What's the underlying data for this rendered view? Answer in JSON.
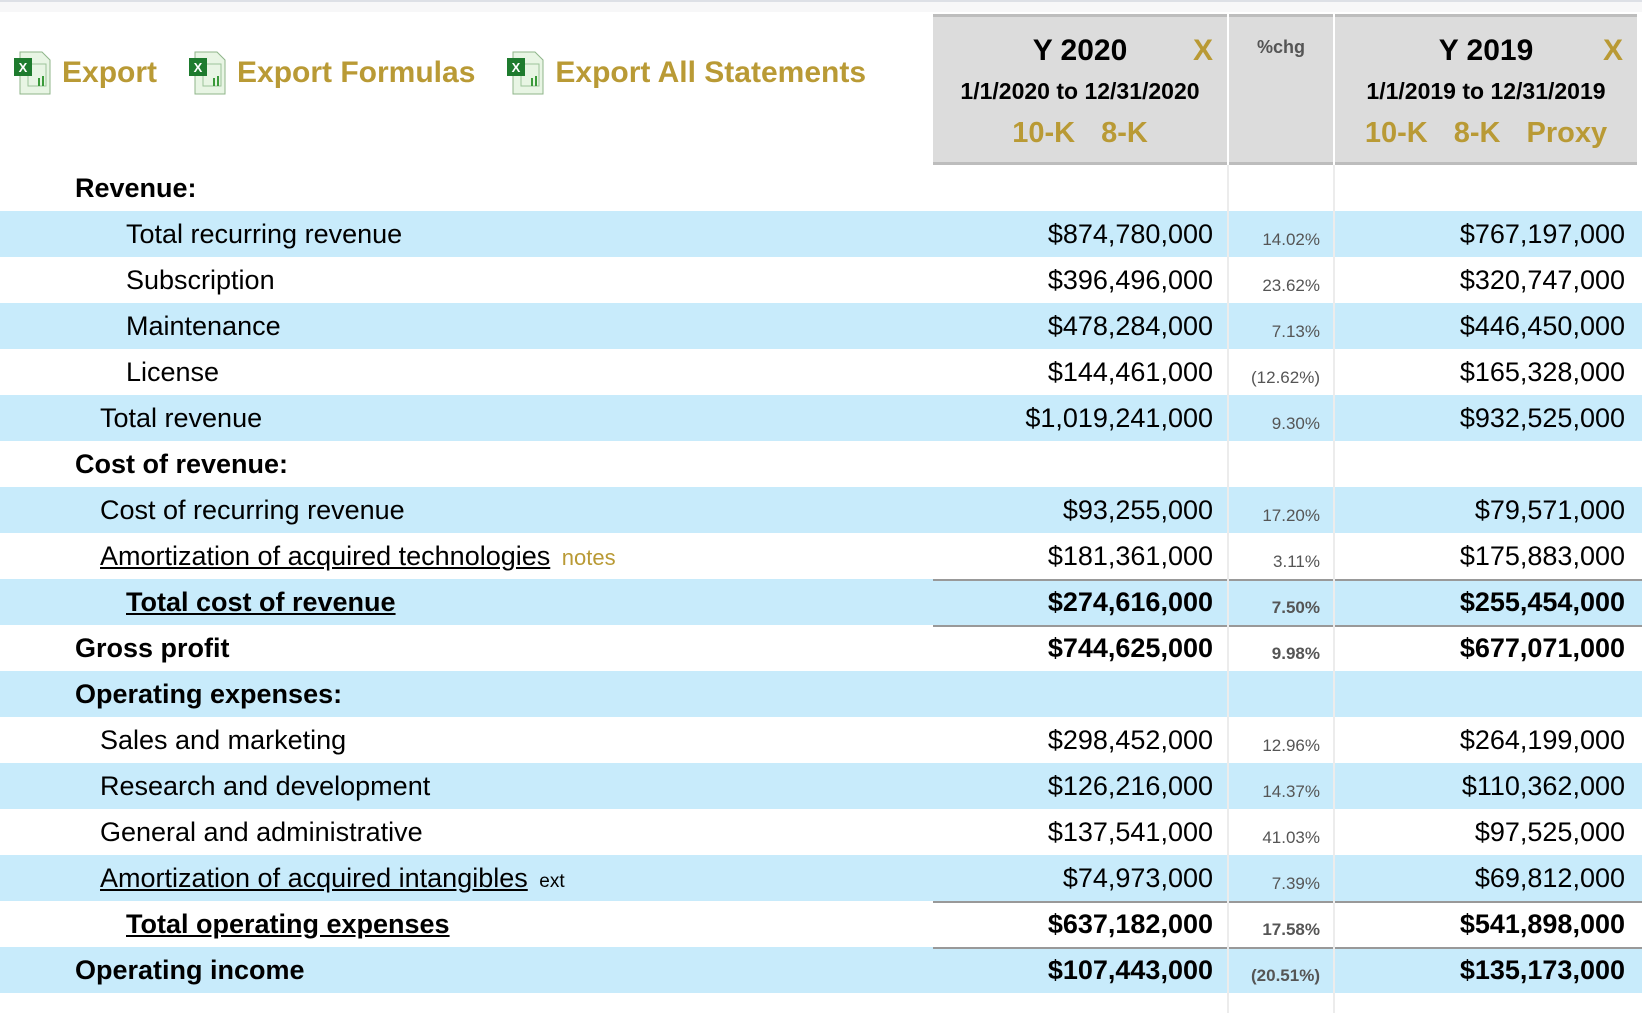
{
  "toolbar": {
    "export": "Export",
    "export_formulas": "Export Formulas",
    "export_all": "Export All Statements"
  },
  "columns": [
    {
      "title": "Y 2020",
      "close": "X",
      "range": "1/1/2020 to 12/31/2020",
      "links": [
        "10-K",
        "8-K"
      ]
    },
    {
      "title": "%chg"
    },
    {
      "title": "Y 2019",
      "close": "X",
      "range": "1/1/2019 to 12/31/2019",
      "links": [
        "10-K",
        "8-K",
        "Proxy"
      ]
    }
  ],
  "rows": [
    {
      "label": "Revenue:",
      "y2020": "",
      "pct": "",
      "y2019": ""
    },
    {
      "label": "Total recurring revenue",
      "y2020": "$874,780,000",
      "pct": "14.02%",
      "y2019": "$767,197,000"
    },
    {
      "label": "Subscription",
      "y2020": "$396,496,000",
      "pct": "23.62%",
      "y2019": "$320,747,000"
    },
    {
      "label": "Maintenance",
      "y2020": "$478,284,000",
      "pct": "7.13%",
      "y2019": "$446,450,000"
    },
    {
      "label": "License",
      "y2020": "$144,461,000",
      "pct": "(12.62%)",
      "y2019": "$165,328,000"
    },
    {
      "label": "Total revenue",
      "y2020": "$1,019,241,000",
      "pct": "9.30%",
      "y2019": "$932,525,000"
    },
    {
      "label": "Cost of revenue:",
      "y2020": "",
      "pct": "",
      "y2019": ""
    },
    {
      "label": "Cost of recurring revenue",
      "y2020": "$93,255,000",
      "pct": "17.20%",
      "y2019": "$79,571,000"
    },
    {
      "label": "Amortization of acquired technologies",
      "note": "notes",
      "y2020": "$181,361,000",
      "pct": "3.11%",
      "y2019": "$175,883,000"
    },
    {
      "label": "Total cost of revenue",
      "y2020": "$274,616,000",
      "pct": "7.50%",
      "y2019": "$255,454,000"
    },
    {
      "label": "Gross profit",
      "y2020": "$744,625,000",
      "pct": "9.98%",
      "y2019": "$677,071,000"
    },
    {
      "label": "Operating expenses:",
      "y2020": "",
      "pct": "",
      "y2019": ""
    },
    {
      "label": "Sales and marketing",
      "y2020": "$298,452,000",
      "pct": "12.96%",
      "y2019": "$264,199,000"
    },
    {
      "label": "Research and development",
      "y2020": "$126,216,000",
      "pct": "14.37%",
      "y2019": "$110,362,000"
    },
    {
      "label": "General and administrative",
      "y2020": "$137,541,000",
      "pct": "41.03%",
      "y2019": "$97,525,000"
    },
    {
      "label": "Amortization of acquired intangibles",
      "note": "ext",
      "y2020": "$74,973,000",
      "pct": "7.39%",
      "y2019": "$69,812,000"
    },
    {
      "label": "Total operating expenses",
      "y2020": "$637,182,000",
      "pct": "17.58%",
      "y2019": "$541,898,000"
    },
    {
      "label": "Operating income",
      "y2020": "$107,443,000",
      "pct": "(20.51%)",
      "y2019": "$135,173,000"
    }
  ],
  "colors": {
    "accent": "#b99a35",
    "row_highlight": "#c8ebfb",
    "header_bg": "#dcdcdc"
  }
}
